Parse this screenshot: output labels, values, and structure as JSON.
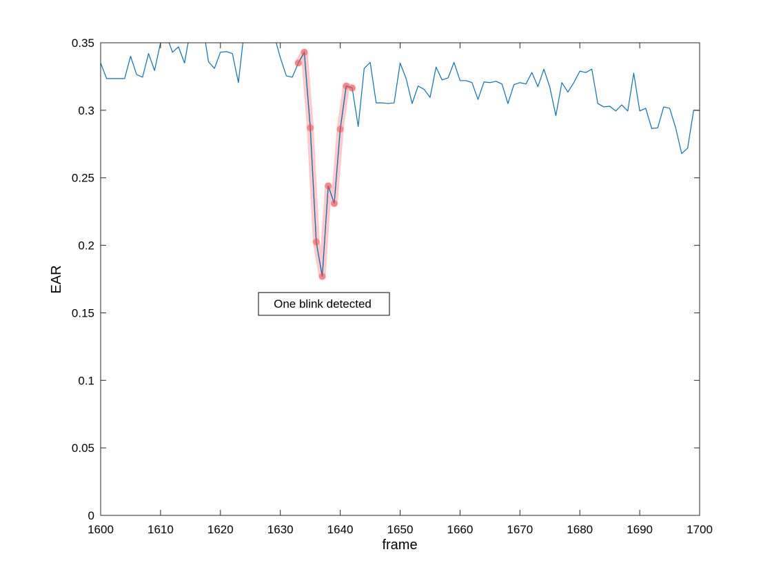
{
  "chart_data": {
    "type": "line",
    "title": "",
    "xlabel": "frame",
    "ylabel": "EAR",
    "xlim": [
      1600,
      1700
    ],
    "ylim": [
      0,
      0.35
    ],
    "xticks": [
      1600,
      1610,
      1620,
      1630,
      1640,
      1650,
      1660,
      1670,
      1680,
      1690,
      1700
    ],
    "yticks": [
      0,
      0.05,
      0.1,
      0.15,
      0.2,
      0.25,
      0.3,
      0.35
    ],
    "xtick_labels": [
      "1600",
      "1610",
      "1620",
      "1630",
      "1640",
      "1650",
      "1660",
      "1670",
      "1680",
      "1690",
      "1700"
    ],
    "ytick_labels": [
      "0",
      "0.05",
      "0.1",
      "0.15",
      "0.2",
      "0.25",
      "0.3",
      "0.35"
    ],
    "grid": false,
    "series": [
      {
        "color": "#0072BD",
        "x": [
          1600,
          1601,
          1602,
          1603,
          1604,
          1605,
          1606,
          1607,
          1608,
          1609,
          1610,
          1611,
          1612,
          1613,
          1614,
          1615,
          1616,
          1617,
          1618,
          1619,
          1620,
          1621,
          1622,
          1623,
          1624,
          1625,
          1626,
          1627,
          1628,
          1629,
          1630,
          1631,
          1632,
          1633,
          1634,
          1635,
          1636,
          1637,
          1638,
          1639,
          1640,
          1641,
          1642,
          1643,
          1644,
          1645,
          1646,
          1647,
          1648,
          1649,
          1650,
          1651,
          1652,
          1653,
          1654,
          1655,
          1656,
          1657,
          1658,
          1659,
          1660,
          1661,
          1662,
          1663,
          1664,
          1665,
          1666,
          1667,
          1668,
          1669,
          1670,
          1671,
          1672,
          1673,
          1674,
          1675,
          1676,
          1677,
          1678,
          1679,
          1680,
          1681,
          1682,
          1683,
          1684,
          1685,
          1686,
          1687,
          1688,
          1689,
          1690,
          1691,
          1692,
          1693,
          1694,
          1695,
          1696,
          1697,
          1698,
          1699,
          1700
        ],
        "y": [
          0.335,
          0.3235,
          0.3235,
          0.3235,
          0.3235,
          0.34,
          0.3265,
          0.3245,
          0.342,
          0.3295,
          0.35,
          0.355,
          0.343,
          0.347,
          0.335,
          0.36,
          0.362,
          0.365,
          0.336,
          0.331,
          0.343,
          0.3435,
          0.342,
          0.3205,
          0.36,
          0.37,
          0.365,
          0.358,
          0.35,
          0.355,
          0.339,
          0.3255,
          0.3245,
          0.335,
          0.343,
          0.287,
          0.2025,
          0.177,
          0.244,
          0.231,
          0.286,
          0.318,
          0.3165,
          0.288,
          0.331,
          0.3355,
          0.3055,
          0.3055,
          0.305,
          0.3055,
          0.335,
          0.3235,
          0.305,
          0.318,
          0.3155,
          0.3095,
          0.332,
          0.3225,
          0.324,
          0.3355,
          0.322,
          0.322,
          0.3205,
          0.308,
          0.321,
          0.3205,
          0.3215,
          0.3195,
          0.305,
          0.319,
          0.3205,
          0.3195,
          0.328,
          0.3175,
          0.3305,
          0.317,
          0.296,
          0.3205,
          0.3135,
          0.3205,
          0.329,
          0.328,
          0.3305,
          0.305,
          0.3025,
          0.303,
          0.2995,
          0.304,
          0.2995,
          0.3275,
          0.2995,
          0.3015,
          0.2865,
          0.287,
          0.3025,
          0.3015,
          0.287,
          0.268,
          0.272,
          0.3,
          0.3
        ]
      }
    ],
    "highlight": {
      "color": "#ff4d4d",
      "x": [
        1633,
        1634,
        1635,
        1636,
        1637,
        1638,
        1639,
        1640,
        1641,
        1642
      ],
      "y": [
        0.335,
        0.343,
        0.287,
        0.2025,
        0.177,
        0.244,
        0.231,
        0.286,
        0.318,
        0.3165
      ]
    },
    "annotation": {
      "text": "One blink detected"
    }
  }
}
